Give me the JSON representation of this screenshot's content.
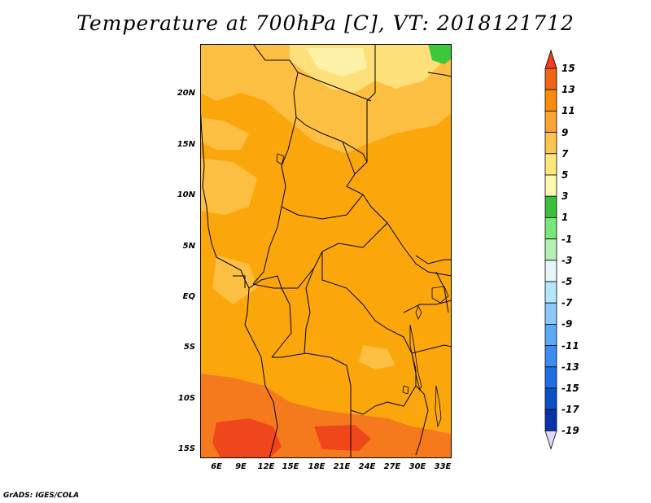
{
  "title": "Temperature at 700hPa [C], VT: 2018121712",
  "footer": "GrADS: IGES/COLA",
  "map": {
    "lat_ticks": [
      "20N",
      "15N",
      "10N",
      "5N",
      "EQ",
      "5S",
      "10S",
      "15S"
    ],
    "lat_values": [
      20,
      15,
      10,
      5,
      0,
      -5,
      -10,
      -15
    ],
    "lon_ticks": [
      "6E",
      "9E",
      "12E",
      "15E",
      "18E",
      "21E",
      "24E",
      "27E",
      "30E",
      "33E"
    ],
    "lon_values": [
      6,
      9,
      12,
      15,
      18,
      21,
      24,
      27,
      30,
      33
    ]
  },
  "colorbar": {
    "labels": [
      "15",
      "13",
      "11",
      "9",
      "7",
      "5",
      "3",
      "1",
      "-1",
      "-3",
      "-5",
      "-7",
      "-9",
      "-11",
      "-13",
      "-15",
      "-17",
      "-19"
    ],
    "values": [
      15,
      13,
      11,
      9,
      7,
      5,
      3,
      1,
      -1,
      -3,
      -5,
      -7,
      -9,
      -11,
      -13,
      -15,
      -17,
      -19
    ],
    "colors": [
      "#fa3c1e",
      "#f06414",
      "#fa8c0a",
      "#fba633",
      "#fcc550",
      "#fde77c",
      "#fcf8b0",
      "#3cbe3c",
      "#78e678",
      "#b4f0b4",
      "#e6f5f5",
      "#b4e6fa",
      "#8cc8fa",
      "#5aaaf5",
      "#3c8cf0",
      "#1e6ee6",
      "#0a50c8",
      "#0a32aa",
      "#14147d"
    ]
  },
  "colors": {
    "c9_11": "#fba70c",
    "c7_9": "#fcbf42",
    "c5_7": "#fde07a",
    "c11_13": "#f57a1e",
    "c13_15": "#f0461c",
    "c3_5": "#fdf1a8",
    "c1_3": "#3cc83c"
  }
}
